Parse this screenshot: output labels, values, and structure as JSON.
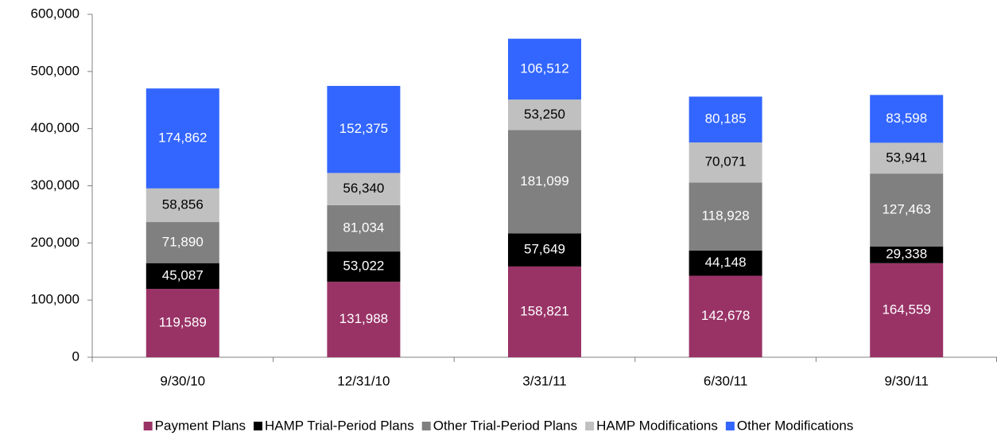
{
  "chart_data": {
    "type": "stacked_bar",
    "categories": [
      "9/30/10",
      "12/31/10",
      "3/31/11",
      "6/30/11",
      "9/30/11"
    ],
    "series": [
      {
        "name": "Payment Plans",
        "color": "#993366",
        "label_color": "#ffffff",
        "values": [
          119589,
          131988,
          158821,
          142678,
          164559
        ],
        "value_labels": [
          "119,589",
          "131,988",
          "158,821",
          "142,678",
          "164,559"
        ]
      },
      {
        "name": "HAMP Trial-Period Plans",
        "color": "#000000",
        "label_color": "#ffffff",
        "values": [
          45087,
          53022,
          57649,
          44148,
          29338
        ],
        "value_labels": [
          "45,087",
          "53,022",
          "57,649",
          "44,148",
          "29,338"
        ]
      },
      {
        "name": "Other Trial-Period Plans",
        "color": "#808080",
        "label_color": "#ffffff",
        "values": [
          71890,
          81034,
          181099,
          118928,
          127463
        ],
        "value_labels": [
          "71,890",
          "81,034",
          "181,099",
          "118,928",
          "127,463"
        ]
      },
      {
        "name": "HAMP Modifications",
        "color": "#c0c0c0",
        "label_color": "#000000",
        "values": [
          58856,
          56340,
          53250,
          70071,
          53941
        ],
        "value_labels": [
          "58,856",
          "56,340",
          "53,250",
          "70,071",
          "53,941"
        ]
      },
      {
        "name": "Other Modifications",
        "color": "#3366ff",
        "label_color": "#ffffff",
        "values": [
          174862,
          152375,
          106512,
          80185,
          83598
        ],
        "value_labels": [
          "174,862",
          "152,375",
          "106,512",
          "80,185",
          "83,598"
        ]
      }
    ],
    "ylim": [
      0,
      600000
    ],
    "yticks": [
      0,
      {
        "value": 100000,
        "label": "100,000"
      },
      {
        "value": 200000,
        "label": "200,000"
      },
      {
        "value": 300000,
        "label": "300,000"
      },
      {
        "value": 400000,
        "label": "400,000"
      },
      {
        "value": 500000,
        "label": "500,000"
      },
      {
        "value": 600000,
        "label": "600,000"
      }
    ],
    "legend": "bottom"
  }
}
